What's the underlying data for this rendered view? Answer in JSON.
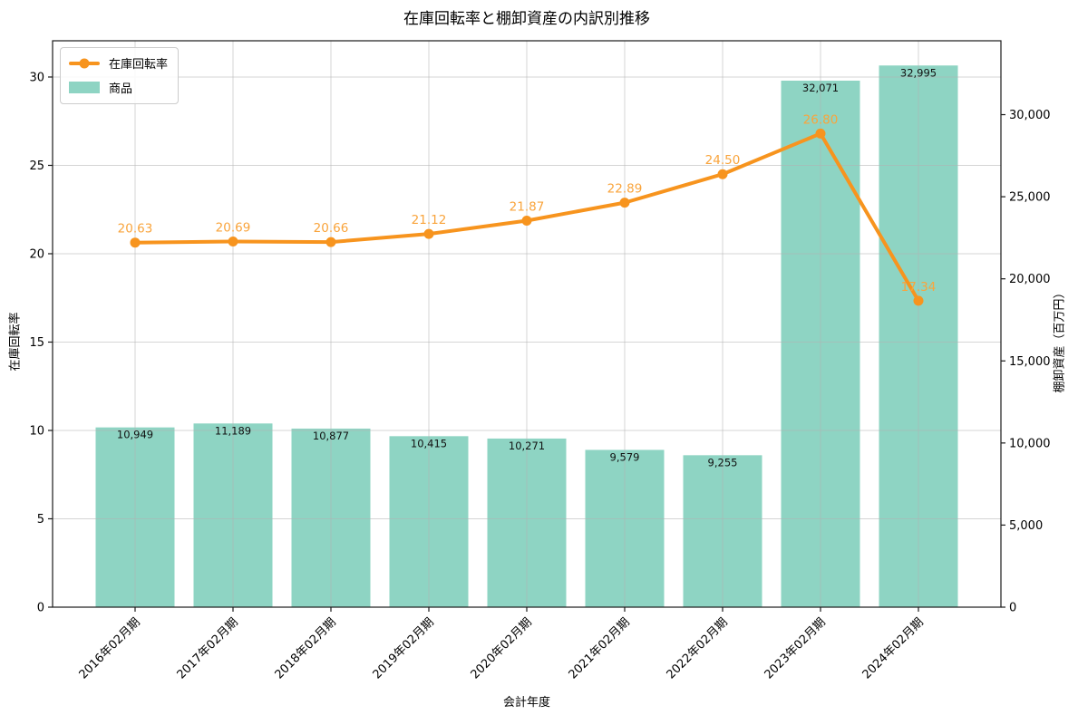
{
  "chart_data": {
    "type": "combo",
    "title": "在庫回転率と棚卸資産の内訳別推移",
    "xlabel": "会計年度",
    "ylabel_left": "在庫回転率",
    "ylabel_right": "棚卸資産（百万円）",
    "categories": [
      "2016年02月期",
      "2017年02月期",
      "2018年02月期",
      "2019年02月期",
      "2020年02月期",
      "2021年02月期",
      "2022年02月期",
      "2023年02月期",
      "2024年02月期"
    ],
    "series": [
      {
        "name": "在庫回転率",
        "type": "line",
        "axis": "left",
        "color": "#f7941e",
        "label_color": "#f9a43c",
        "values": [
          20.63,
          20.69,
          20.66,
          21.12,
          21.87,
          22.89,
          24.5,
          26.8,
          17.34
        ]
      },
      {
        "name": "商品",
        "type": "bar",
        "axis": "right",
        "color": "#8ed4c3",
        "values": [
          10949,
          11189,
          10877,
          10415,
          10271,
          9579,
          9255,
          32071,
          32995
        ]
      }
    ],
    "yticks_left": [
      0,
      5,
      10,
      15,
      20,
      25,
      30
    ],
    "yticks_right": [
      0,
      5000,
      10000,
      15000,
      20000,
      25000,
      30000
    ],
    "ylim_left": [
      0,
      32.05
    ],
    "ylim_right": [
      0,
      34500
    ],
    "grid": true,
    "grid_color": "#b3b3b3",
    "spine_color": "#1a1a1a",
    "legend_position": "upper-left"
  }
}
